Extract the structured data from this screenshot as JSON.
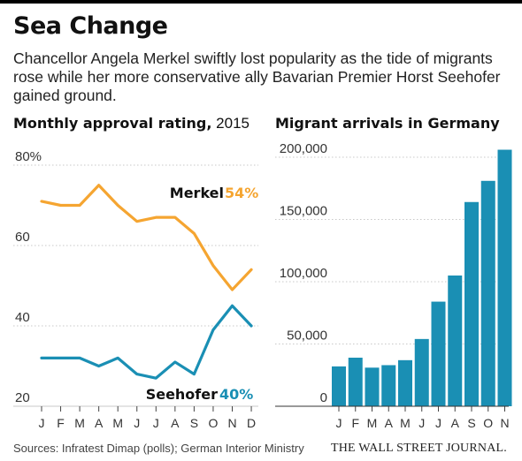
{
  "header": {
    "title": "Sea Change",
    "subtitle": "Chancellor Angela Merkel swiftly lost popularity as the tide of migrants rose while her more conservative ally Bavarian Premier Horst Seehofer gained ground."
  },
  "footer": {
    "source": "Sources: Infratest Dimap (polls); German Interior Ministry",
    "credit": "THE WALL STREET JOURNAL."
  },
  "colors": {
    "merkel": "#f5a531",
    "seehofer": "#1a8fb4",
    "bars": "#1a8fb4",
    "grid": "#c8c8c8",
    "text": "#333333"
  },
  "chart_data": [
    {
      "type": "line",
      "title_bold": "Monthly approval rating,",
      "title_rest": " 2015",
      "x": [
        "J",
        "F",
        "M",
        "A",
        "M",
        "J",
        "J",
        "A",
        "S",
        "O",
        "N",
        "D"
      ],
      "y_ticks": [
        "80%",
        "60",
        "40",
        "20"
      ],
      "ylim": [
        20,
        80
      ],
      "series": [
        {
          "name": "Merkel",
          "end_label": "54%",
          "values": [
            71,
            70,
            70,
            75,
            70,
            66,
            67,
            67,
            63,
            55,
            49,
            54
          ]
        },
        {
          "name": "Seehofer",
          "end_label": "40%",
          "values": [
            32,
            32,
            32,
            30,
            32,
            28,
            27,
            31,
            28,
            39,
            45,
            40
          ]
        }
      ]
    },
    {
      "type": "bar",
      "title": "Migrant arrivals in Germany",
      "categories": [
        "J",
        "F",
        "M",
        "A",
        "M",
        "J",
        "J",
        "A",
        "S",
        "O",
        "N"
      ],
      "values": [
        32000,
        39000,
        31000,
        33000,
        37000,
        54000,
        84000,
        105000,
        164000,
        181000,
        206000
      ],
      "y_ticks": [
        "200,000",
        "150,000",
        "100,000",
        "50,000",
        "0"
      ],
      "ylim": [
        0,
        200000
      ]
    }
  ]
}
